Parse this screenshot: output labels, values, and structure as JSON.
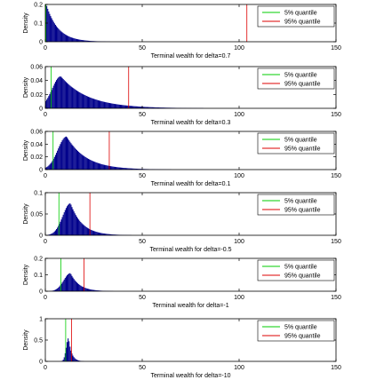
{
  "chart_data": [
    {
      "type": "bar",
      "xlabel": "Terminal wealth for delta=0.7",
      "ylabel": "Density",
      "xlim": [
        0,
        150
      ],
      "ylim": [
        0,
        0.2
      ],
      "xticks": [
        "0",
        "50",
        "100",
        "150"
      ],
      "yticks": [
        "0",
        "0.1",
        "0.2"
      ],
      "dist": {
        "kind": "decay",
        "peak_x": 0.5,
        "peak_y": 0.2,
        "scale": 6,
        "end": 140
      },
      "quantiles": [
        {
          "name": "5% quantile",
          "value": 0.3,
          "color": "#00cc00"
        },
        {
          "name": "95% quantile",
          "value": 104,
          "color": "#dd0000"
        }
      ],
      "legend": "top-right"
    },
    {
      "type": "bar",
      "xlabel": "Terminal wealth for delta=0.3",
      "ylabel": "Density",
      "xlim": [
        0,
        150
      ],
      "ylim": [
        0,
        0.06
      ],
      "xticks": [
        "0",
        "50",
        "100",
        "150"
      ],
      "yticks": [
        "0",
        "0.02",
        "0.04",
        "0.06"
      ],
      "dist": {
        "kind": "hump",
        "peak_x": 8,
        "peak_y": 0.046,
        "left_width": 4.5,
        "right_decay": 14,
        "end": 140
      },
      "quantiles": [
        {
          "name": "5% quantile",
          "value": 3,
          "color": "#00cc00"
        },
        {
          "name": "95% quantile",
          "value": 43,
          "color": "#dd0000"
        }
      ],
      "legend": "top-right"
    },
    {
      "type": "bar",
      "xlabel": "Terminal wealth for delta=0.1",
      "ylabel": "Density",
      "xlim": [
        0,
        150
      ],
      "ylim": [
        0,
        0.06
      ],
      "xticks": [
        "0",
        "50",
        "100",
        "150"
      ],
      "yticks": [
        "0",
        "0.02",
        "0.04",
        "0.06"
      ],
      "dist": {
        "kind": "hump",
        "peak_x": 11,
        "peak_y": 0.052,
        "left_width": 4.5,
        "right_decay": 10,
        "end": 140
      },
      "quantiles": [
        {
          "name": "5% quantile",
          "value": 4,
          "color": "#00cc00"
        },
        {
          "name": "95% quantile",
          "value": 33,
          "color": "#dd0000"
        }
      ],
      "legend": "top-right"
    },
    {
      "type": "bar",
      "xlabel": "Terminal wealth for delta=-0.5",
      "ylabel": "Density",
      "xlim": [
        0,
        150
      ],
      "ylim": [
        0,
        0.1
      ],
      "xticks": [
        "0",
        "50",
        "100",
        "150"
      ],
      "yticks": [
        "0",
        "0.05",
        "0.1"
      ],
      "dist": {
        "kind": "hump",
        "peak_x": 13,
        "peak_y": 0.075,
        "left_width": 4,
        "right_decay": 6,
        "end": 60
      },
      "quantiles": [
        {
          "name": "5% quantile",
          "value": 7,
          "color": "#00cc00"
        },
        {
          "name": "95% quantile",
          "value": 23,
          "color": "#dd0000"
        }
      ],
      "legend": "top-right"
    },
    {
      "type": "bar",
      "xlabel": "Terminal wealth for delta=-1",
      "ylabel": "Density",
      "xlim": [
        0,
        150
      ],
      "ylim": [
        0,
        0.2
      ],
      "xticks": [
        "0",
        "50",
        "100",
        "150"
      ],
      "yticks": [
        "0",
        "0.1",
        "0.2"
      ],
      "dist": {
        "kind": "hump",
        "peak_x": 13,
        "peak_y": 0.11,
        "left_width": 3.5,
        "right_decay": 4.5,
        "end": 45
      },
      "quantiles": [
        {
          "name": "5% quantile",
          "value": 8,
          "color": "#00cc00"
        },
        {
          "name": "95% quantile",
          "value": 20,
          "color": "#dd0000"
        }
      ],
      "legend": "top-right"
    },
    {
      "type": "bar",
      "xlabel": "Terminal wealth for delta=-10",
      "ylabel": "Density",
      "xlim": [
        0,
        150
      ],
      "ylim": [
        0,
        1
      ],
      "xticks": [
        "0",
        "50",
        "100",
        "150"
      ],
      "yticks": [
        "0",
        "0.5",
        "1"
      ],
      "dist": {
        "kind": "hump",
        "peak_x": 12,
        "peak_y": 0.55,
        "left_width": 1.2,
        "right_decay": 1.6,
        "end": 25
      },
      "quantiles": [
        {
          "name": "5% quantile",
          "value": 10.5,
          "color": "#00cc00"
        },
        {
          "name": "95% quantile",
          "value": 13.5,
          "color": "#dd0000"
        }
      ],
      "legend": "top-right"
    }
  ]
}
